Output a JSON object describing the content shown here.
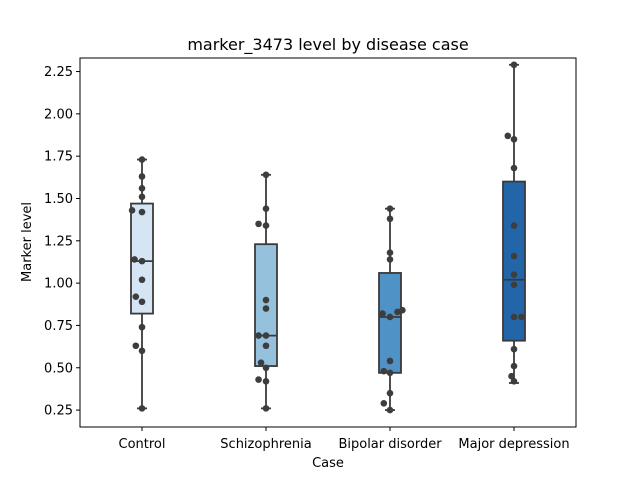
{
  "chart_data": {
    "type": "box",
    "title": "marker_3473 level by disease case",
    "xlabel": "Case",
    "ylabel": "Marker level",
    "ylim": [
      0.15,
      2.33
    ],
    "yticks": [
      0.25,
      0.5,
      0.75,
      1.0,
      1.25,
      1.5,
      1.75,
      2.0,
      2.25
    ],
    "ytick_labels": [
      "0.25",
      "0.50",
      "0.75",
      "1.00",
      "1.25",
      "1.50",
      "1.75",
      "2.00",
      "2.25"
    ],
    "grid": false,
    "categories": [
      "Control",
      "Schizophrenia",
      "Bipolar disorder",
      "Major depression"
    ],
    "colors": [
      "#d6e5f4",
      "#95c1dd",
      "#4f93c6",
      "#2266a9"
    ],
    "boxes": [
      {
        "min": 0.26,
        "q1": 0.82,
        "median": 1.13,
        "q3": 1.47,
        "max": 1.73
      },
      {
        "min": 0.26,
        "q1": 0.51,
        "median": 0.69,
        "q3": 1.23,
        "max": 1.64
      },
      {
        "min": 0.25,
        "q1": 0.47,
        "median": 0.8,
        "q3": 1.06,
        "max": 1.44
      },
      {
        "min": 0.41,
        "q1": 0.66,
        "median": 1.02,
        "q3": 1.6,
        "max": 2.29
      }
    ],
    "points": [
      [
        {
          "x": 0,
          "y": 1.73
        },
        {
          "x": 0,
          "y": 1.63
        },
        {
          "x": 0,
          "y": 1.56
        },
        {
          "x": 0,
          "y": 1.51
        },
        {
          "x": -0.08,
          "y": 1.43
        },
        {
          "x": 0,
          "y": 1.42
        },
        {
          "x": -0.06,
          "y": 1.14
        },
        {
          "x": 0,
          "y": 1.13
        },
        {
          "x": 0,
          "y": 1.02
        },
        {
          "x": -0.05,
          "y": 0.92
        },
        {
          "x": 0,
          "y": 0.89
        },
        {
          "x": 0,
          "y": 0.74
        },
        {
          "x": -0.05,
          "y": 0.63
        },
        {
          "x": 0,
          "y": 0.6
        },
        {
          "x": 0,
          "y": 0.26
        }
      ],
      [
        {
          "x": 0,
          "y": 1.64
        },
        {
          "x": 0,
          "y": 1.44
        },
        {
          "x": -0.06,
          "y": 1.35
        },
        {
          "x": 0,
          "y": 1.34
        },
        {
          "x": 0,
          "y": 0.9
        },
        {
          "x": 0,
          "y": 0.85
        },
        {
          "x": -0.06,
          "y": 0.69
        },
        {
          "x": 0,
          "y": 0.69
        },
        {
          "x": 0,
          "y": 0.63
        },
        {
          "x": -0.04,
          "y": 0.53
        },
        {
          "x": 0,
          "y": 0.5
        },
        {
          "x": -0.06,
          "y": 0.43
        },
        {
          "x": 0,
          "y": 0.42
        },
        {
          "x": 0,
          "y": 0.26
        }
      ],
      [
        {
          "x": 0,
          "y": 1.44
        },
        {
          "x": 0,
          "y": 1.38
        },
        {
          "x": 0,
          "y": 1.18
        },
        {
          "x": 0,
          "y": 1.14
        },
        {
          "x": -0.06,
          "y": 0.82
        },
        {
          "x": 0,
          "y": 0.8
        },
        {
          "x": 0.06,
          "y": 0.83
        },
        {
          "x": 0.1,
          "y": 0.84
        },
        {
          "x": 0,
          "y": 0.54
        },
        {
          "x": -0.05,
          "y": 0.48
        },
        {
          "x": 0,
          "y": 0.47
        },
        {
          "x": 0,
          "y": 0.35
        },
        {
          "x": -0.05,
          "y": 0.29
        },
        {
          "x": 0,
          "y": 0.25
        }
      ],
      [
        {
          "x": 0,
          "y": 2.29
        },
        {
          "x": -0.05,
          "y": 1.87
        },
        {
          "x": 0,
          "y": 1.85
        },
        {
          "x": 0,
          "y": 1.68
        },
        {
          "x": 0,
          "y": 1.34
        },
        {
          "x": 0,
          "y": 1.16
        },
        {
          "x": 0,
          "y": 1.05
        },
        {
          "x": 0,
          "y": 0.99
        },
        {
          "x": 0,
          "y": 0.8
        },
        {
          "x": 0.06,
          "y": 0.8
        },
        {
          "x": 0,
          "y": 0.61
        },
        {
          "x": 0,
          "y": 0.51
        },
        {
          "x": -0.02,
          "y": 0.45
        },
        {
          "x": 0,
          "y": 0.42
        }
      ]
    ]
  }
}
